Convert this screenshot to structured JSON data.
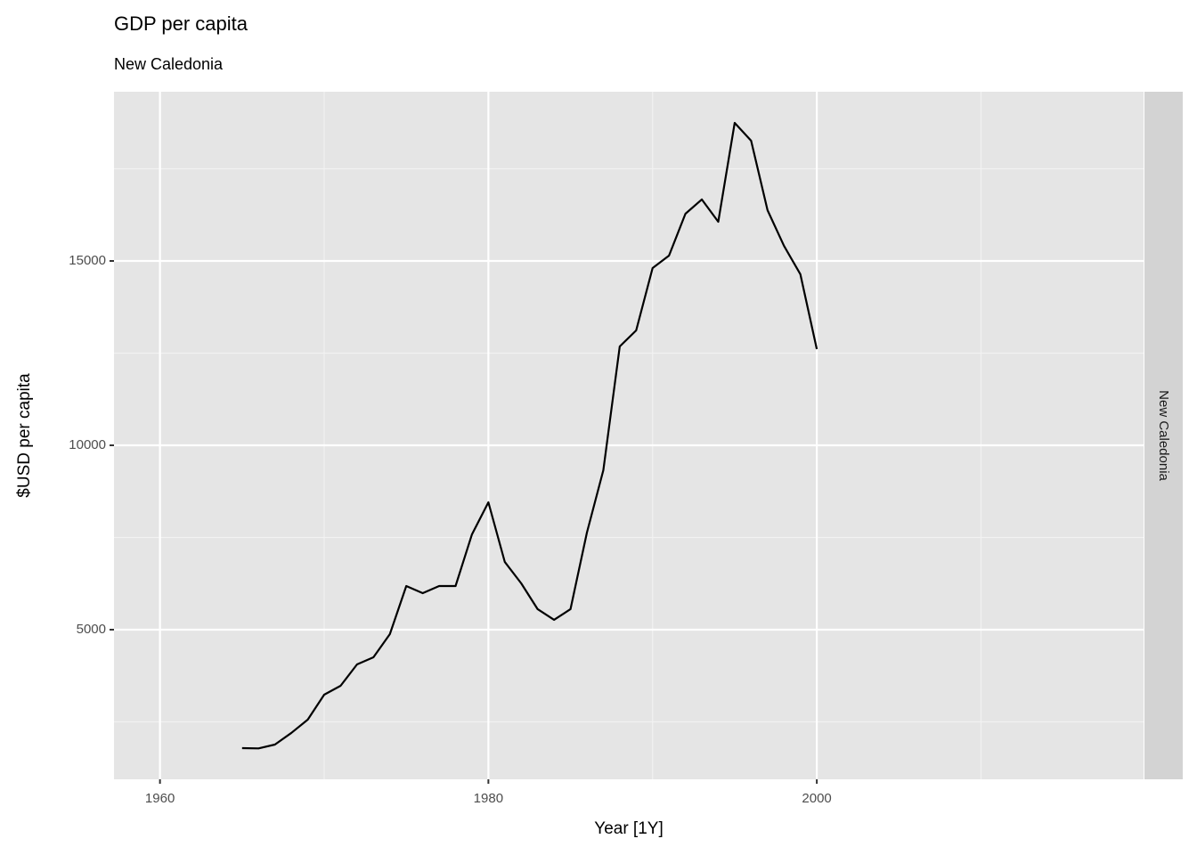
{
  "chart_data": {
    "type": "line",
    "title": "GDP per capita",
    "subtitle": "New Caledonia",
    "x_label": "Year [1Y]",
    "y_label": "$USD per capita",
    "facet_label": "New Caledonia",
    "x": [
      1965,
      1966,
      1967,
      1968,
      1969,
      1970,
      1971,
      1972,
      1973,
      1974,
      1975,
      1976,
      1977,
      1978,
      1979,
      1980,
      1981,
      1982,
      1983,
      1984,
      1985,
      1986,
      1987,
      1988,
      1989,
      1990,
      1991,
      1992,
      1993,
      1994,
      1995,
      1996,
      1997,
      1998,
      1999,
      2000
    ],
    "values": [
      1787,
      1780,
      1884,
      2200,
      2560,
      3237,
      3478,
      4058,
      4251,
      4879,
      6184,
      5990,
      6184,
      6184,
      7585,
      8454,
      6836,
      6256,
      5556,
      5266,
      5556,
      7633,
      9324,
      12681,
      13116,
      14807,
      15145,
      16280,
      16667,
      16063,
      18744,
      18261,
      16377,
      15411,
      14638,
      12609
    ],
    "color": "#000000",
    "xlim": [
      1957.2,
      2019.9
    ],
    "xticks": [
      1960,
      1980,
      2000
    ],
    "x_minor_ticks": [
      1970,
      1990,
      2010
    ],
    "ylim": [
      942,
      19589
    ],
    "yticks": [
      5000,
      10000,
      15000
    ],
    "y_minor_ticks": [
      2500,
      7500,
      12500,
      17500
    ],
    "grid": true
  }
}
